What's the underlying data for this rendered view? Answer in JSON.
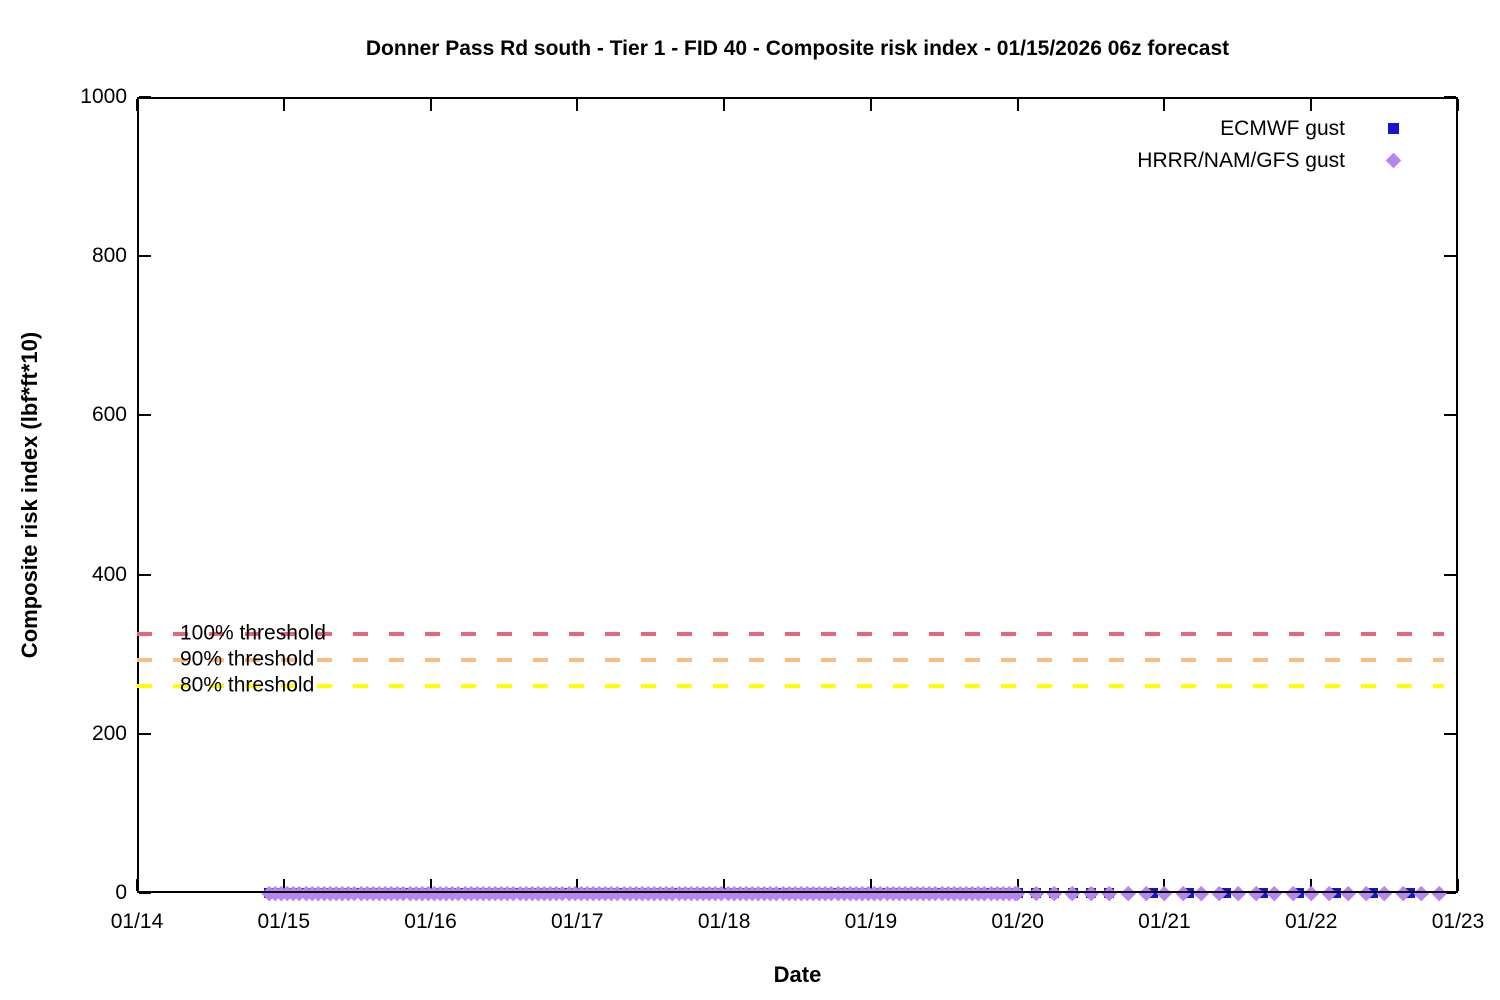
{
  "chart_data": {
    "type": "scatter",
    "title": "Donner Pass Rd south - Tier 1 - FID 40 - Composite risk index - 01/15/2026 06z forecast",
    "xlabel": "Date",
    "ylabel": "Composite risk index (lbf*ft*10)",
    "x_tick_labels": [
      "01/14",
      "01/15",
      "01/16",
      "01/17",
      "01/18",
      "01/19",
      "01/20",
      "01/21",
      "01/22",
      "01/23"
    ],
    "y_ticks": [
      0,
      200,
      400,
      600,
      800,
      1000
    ],
    "ylim": [
      0,
      1000
    ],
    "x_range_days": 9,
    "grid": false,
    "legend_position": "top-right-inside",
    "thresholds": [
      {
        "label": "100% threshold",
        "value": 325,
        "color": "#e2697b"
      },
      {
        "label": "90% threshold",
        "value": 292.5,
        "color": "#fcbc80"
      },
      {
        "label": "80% threshold",
        "value": 260,
        "color": "#ffff00"
      }
    ],
    "series": [
      {
        "name": "ECMWF gust",
        "marker": "square",
        "color": "#1515cd",
        "value": 0,
        "segments": [
          {
            "start_day": 0.9,
            "end_day": 6.0,
            "step_hours": 1
          },
          {
            "start_day": 6.0,
            "end_day": 6.7,
            "step_hours": 3
          },
          {
            "start_day": 6.92,
            "end_day": 8.68,
            "step_hours": 6
          }
        ]
      },
      {
        "name": "HRRR/NAM/GFS gust",
        "marker": "diamond",
        "color": "#b685f0",
        "value": 0,
        "segments": [
          {
            "start_day": 0.9,
            "end_day": 6.0,
            "step_hours": 1
          },
          {
            "start_day": 6.0,
            "end_day": 8.95,
            "step_hours": 3
          }
        ]
      }
    ]
  }
}
